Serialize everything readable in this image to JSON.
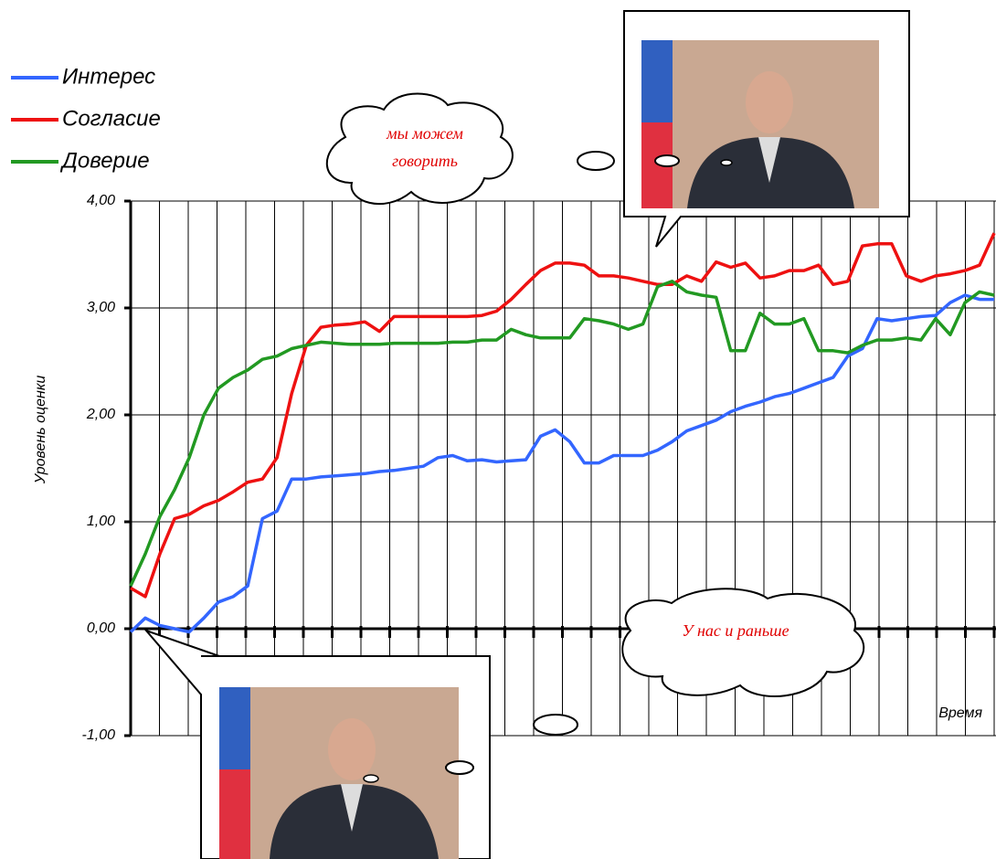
{
  "chart_data": {
    "type": "line",
    "y_axis_label": "Уровень оценки",
    "x_axis_label": "Время",
    "annotations": [
      "мы можем",
      "говорить",
      "У нас и раньше"
    ],
    "ylim": [
      -1,
      4
    ],
    "yticks": [
      {
        "value": -1,
        "label": "-1,00"
      },
      {
        "value": 0,
        "label": "0,00"
      },
      {
        "value": 1,
        "label": "1,00"
      },
      {
        "value": 2,
        "label": "2,00"
      },
      {
        "value": 3,
        "label": "3,00"
      },
      {
        "value": 4,
        "label": "4,00"
      }
    ],
    "grid": true,
    "legend": "top-left",
    "series": [
      {
        "name": "Интерес",
        "color": "#3366ff",
        "values": [
          -0.03,
          0.1,
          0.03,
          0,
          -0.03,
          0.1,
          0.25,
          0.3,
          0.4,
          1.03,
          1.1,
          1.4,
          1.4,
          1.42,
          1.43,
          1.44,
          1.45,
          1.47,
          1.48,
          1.5,
          1.52,
          1.6,
          1.62,
          1.57,
          1.58,
          1.56,
          1.57,
          1.58,
          1.8,
          1.86,
          1.75,
          1.55,
          1.55,
          1.62,
          1.62,
          1.62,
          1.67,
          1.75,
          1.85,
          1.9,
          1.95,
          2.03,
          2.08,
          2.12,
          2.17,
          2.2,
          2.25,
          2.3,
          2.35,
          2.55,
          2.62,
          2.9,
          2.88,
          2.9,
          2.92,
          2.93,
          3.05,
          3.12,
          3.08,
          3.08
        ]
      },
      {
        "name": "Согласие",
        "color": "#ee1111",
        "values": [
          0.38,
          0.3,
          0.7,
          1.03,
          1.07,
          1.15,
          1.2,
          1.28,
          1.37,
          1.4,
          1.6,
          2.2,
          2.65,
          2.82,
          2.84,
          2.85,
          2.87,
          2.78,
          2.92,
          2.92,
          2.92,
          2.92,
          2.92,
          2.92,
          2.93,
          2.97,
          3.08,
          3.22,
          3.35,
          3.42,
          3.42,
          3.4,
          3.3,
          3.3,
          3.28,
          3.25,
          3.22,
          3.22,
          3.3,
          3.25,
          3.43,
          3.38,
          3.42,
          3.28,
          3.3,
          3.35,
          3.35,
          3.4,
          3.22,
          3.25,
          3.58,
          3.6,
          3.6,
          3.3,
          3.25,
          3.3,
          3.32,
          3.35,
          3.4,
          3.7
        ]
      },
      {
        "name": "Доверие",
        "color": "#229922",
        "values": [
          0.4,
          0.7,
          1.05,
          1.3,
          1.6,
          2.0,
          2.25,
          2.35,
          2.42,
          2.52,
          2.55,
          2.62,
          2.65,
          2.68,
          2.67,
          2.66,
          2.66,
          2.66,
          2.67,
          2.67,
          2.67,
          2.67,
          2.68,
          2.68,
          2.7,
          2.7,
          2.8,
          2.75,
          2.72,
          2.72,
          2.72,
          2.9,
          2.88,
          2.85,
          2.8,
          2.85,
          3.2,
          3.25,
          3.15,
          3.12,
          3.1,
          2.6,
          2.6,
          2.95,
          2.85,
          2.85,
          2.9,
          2.6,
          2.6,
          2.58,
          2.65,
          2.7,
          2.7,
          2.72,
          2.7,
          2.9,
          2.75,
          3.05,
          3.15,
          3.12
        ]
      }
    ]
  }
}
